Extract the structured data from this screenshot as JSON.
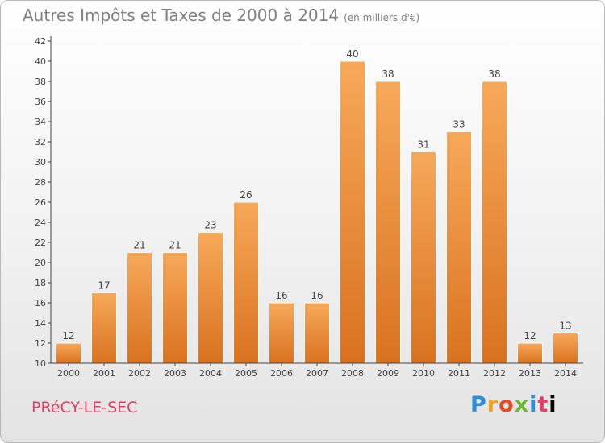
{
  "header": {
    "title": "Autres Impôts et Taxes de 2000 à 2014",
    "subtitle": "(en milliers d'€)"
  },
  "footer": {
    "town": "PRéCY-LE-SEC",
    "logo_letters": [
      "P",
      "r",
      "o",
      "x",
      "i",
      "t",
      "i"
    ]
  },
  "colors": {
    "bar_top": "#f7a95a",
    "bar_bottom": "#d9721f",
    "title": "#808080",
    "town": "#e83b63"
  },
  "chart_data": {
    "type": "bar",
    "title": "Autres Impôts et Taxes de 2000 à 2014",
    "subtitle": "(en milliers d'€)",
    "categories": [
      "2000",
      "2001",
      "2002",
      "2003",
      "2004",
      "2005",
      "2006",
      "2007",
      "2008",
      "2009",
      "2010",
      "2011",
      "2012",
      "2013",
      "2014"
    ],
    "values": [
      12,
      17,
      21,
      21,
      23,
      26,
      16,
      16,
      40,
      38,
      31,
      33,
      38,
      12,
      13
    ],
    "ylim": [
      10,
      42
    ],
    "yticks": [
      10,
      12,
      14,
      16,
      18,
      20,
      22,
      24,
      26,
      28,
      30,
      32,
      34,
      36,
      38,
      40,
      42
    ],
    "grid": false,
    "data_labels": true
  }
}
